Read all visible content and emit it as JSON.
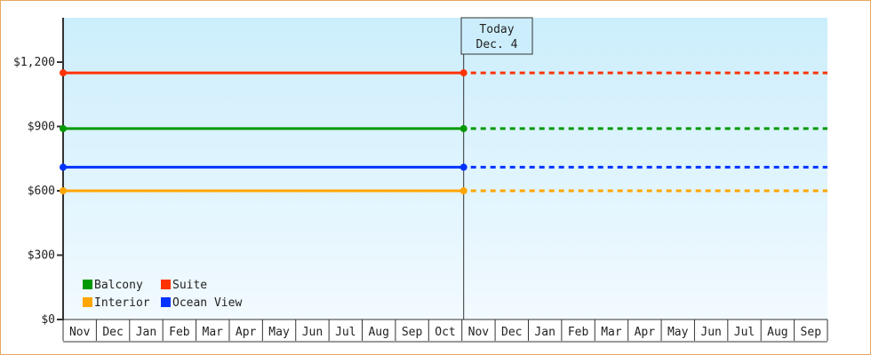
{
  "chart_data": {
    "type": "line",
    "categories": [
      "Nov",
      "Dec",
      "Jan",
      "Feb",
      "Mar",
      "Apr",
      "May",
      "Jun",
      "Jul",
      "Aug",
      "Sep",
      "Oct",
      "Nov",
      "Dec",
      "Jan",
      "Feb",
      "Mar",
      "Apr",
      "May",
      "Jun",
      "Jul",
      "Aug",
      "Sep"
    ],
    "ylim": [
      0,
      1400
    ],
    "yticks": [
      0,
      300,
      600,
      900,
      1200
    ],
    "ytick_labels": [
      "$0",
      "$300",
      "$600",
      "$900",
      "$1,200"
    ],
    "today_index": 12,
    "today_label": [
      "Today",
      "Dec. 4"
    ],
    "series": [
      {
        "name": "Suite",
        "color": "#ff3300",
        "value": 1150
      },
      {
        "name": "Balcony",
        "color": "#009900",
        "value": 890
      },
      {
        "name": "Ocean View",
        "color": "#0033ff",
        "value": 710
      },
      {
        "name": "Interior",
        "color": "#ffa500",
        "value": 600
      }
    ],
    "legend_order": [
      "Balcony",
      "Suite",
      "Interior",
      "Ocean View"
    ],
    "legend_position": "bottom-left",
    "background_gradient": [
      "#cceefc",
      "#f2faff"
    ]
  }
}
